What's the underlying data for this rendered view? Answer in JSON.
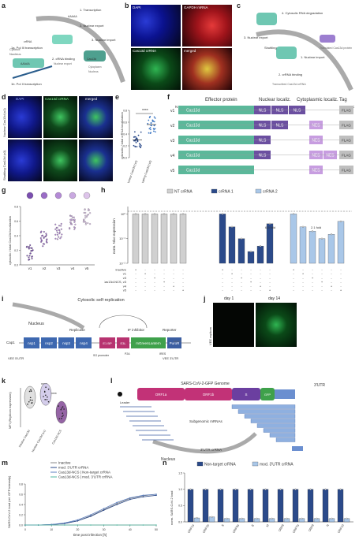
{
  "panels": {
    "a": {
      "letter": "a",
      "labels": [
        "Cytosol",
        "Nucleus",
        "1. Transcription",
        "2. Nuclear export",
        "3. Nuclear import",
        "1a. Pol III transcription",
        "1b. Pol II transcription",
        "2. cRNA binding",
        "Nuclear export",
        "Cytoplasm",
        "Nucleus",
        "AAAAA",
        "AAAAA",
        "crRNA",
        "Cas13d"
      ]
    },
    "b": {
      "letter": "b",
      "tiles": [
        "DAPI",
        "GAPDH mRNA",
        "Cas13d crRNA",
        "merged"
      ]
    },
    "c": {
      "letter": "c",
      "labels": [
        "4. Cytosolic RNA degradation",
        "3. Nuclear export",
        "2. crRNA binding",
        "1. Nuclear import",
        "Shuttling",
        "Transcribed Cas13d crRNA",
        "Translated Cas13d protein"
      ]
    },
    "d": {
      "letter": "d",
      "cols": [
        "DAPI",
        "Cas13d crRNA",
        "merged"
      ],
      "rows": [
        "Nuclear Cas13d (v1)",
        "Shuttling Cas13d (v3)"
      ]
    },
    "e": {
      "letter": "e",
      "ylabel": "cytosolic / total crRNA localization",
      "categories": [
        "Nuclear Cas13d (v1)",
        "Shuttling Cas13d (v3)"
      ],
      "sig": "****",
      "yticks": [
        "0.0",
        "0.2",
        "0.4",
        "0.6",
        "0.8"
      ]
    },
    "f": {
      "letter": "f",
      "headers": [
        "Effector protein",
        "Nuclear localiz.",
        "Cytoplasmic localiz.",
        "Tag"
      ],
      "termN": "N",
      "termC": "C",
      "rows": [
        {
          "name": "v1",
          "protein": "Cas13d",
          "nls": [
            "NLS",
            "NLS",
            "NLS"
          ],
          "nes": [],
          "tag": "FLAG"
        },
        {
          "name": "v2",
          "protein": "Cas13d",
          "nls": [
            "NLS",
            "NLS"
          ],
          "nes": [
            "NES"
          ],
          "tag": "FLAG"
        },
        {
          "name": "v3",
          "protein": "Cas13d",
          "nls": [
            "NLS"
          ],
          "nes": [
            "NES"
          ],
          "tag": "FLAG"
        },
        {
          "name": "v4",
          "protein": "Cas13d",
          "nls": [
            "NLS"
          ],
          "nes": [
            "NES",
            "NES"
          ],
          "tag": "FLAG"
        },
        {
          "name": "v5",
          "protein": "Cas13d",
          "nls": [],
          "nes": [
            "NES"
          ],
          "tag": "FLAG"
        }
      ]
    },
    "g": {
      "letter": "g",
      "ylabel": "cytosolic / total Cas13d localization"
    },
    "h": {
      "letter": "h",
      "legend": [
        "NT crRNA",
        "crRNA 1",
        "crRNA 2"
      ],
      "ylabel": "norm. Nluc expression",
      "fold1": "6.5 fold",
      "fold2": "2.1 fold",
      "rowlabels": [
        "inactive",
        "v1",
        "v3",
        "Cas13d-NCS, v3",
        "v4",
        "v5"
      ]
    },
    "i": {
      "letter": "i",
      "labels": [
        "Nucleus",
        "Cytosolic self-replication",
        "Replicase",
        "IF inhibitor",
        "Reporter",
        "Cap1",
        "nsp1",
        "nsp2",
        "nsp3",
        "nsp4",
        "E1 BP",
        "E3L",
        "mGreenLantern",
        "PuroR",
        "AAAAA",
        "VEE 5'UTR",
        "SG promoter",
        "P2A",
        "IRES",
        "VEE 3'UTR"
      ]
    },
    "j": {
      "letter": "j",
      "days": [
        "day 1",
        "day 14"
      ],
      "side": "VEE replicon"
    },
    "k": {
      "letter": "k",
      "ylabel": "MFI (Replicon expression)",
      "categories": [
        "inactive Cas13d",
        "Nuclear Cas13d (v1)",
        "Cas13d-NCS"
      ],
      "sig": [
        "****",
        "****"
      ]
    },
    "l": {
      "letter": "l",
      "labels": [
        "SARS-CoV-2-GFP Genome",
        "Leader",
        "ORF1a",
        "ORF1b",
        "S",
        "GFP",
        "3'UTR",
        "Subgenomic mRNAs",
        "3'UTR crRNA",
        "Nucleus"
      ]
    },
    "m": {
      "letter": "m",
      "legend": [
        "Inactive",
        "mod. 3'UTR crRNA",
        "Cas13d-NCS | Non-target crRNA",
        "Cas13d-NCS | mod. 3'UTR crRNA"
      ],
      "ylabel": "SARS-CoV-2 load (rel. GFP intensity)",
      "xlabel": "time post infection [h]",
      "xticks": [
        "0",
        "10",
        "20",
        "30",
        "40",
        "50"
      ],
      "yticks": [
        "0.0",
        "0.2",
        "0.4",
        "0.6",
        "0.8"
      ]
    },
    "n": {
      "letter": "n",
      "legend": [
        "Non-target crRNA",
        "mod. 3'UTR crRNA"
      ],
      "ylabel": "norm. SARS-CoV-2 load",
      "yticks": [
        "0.0",
        "0.5",
        "1.0",
        "1.5"
      ]
    }
  },
  "chart_data": [
    {
      "panel": "e",
      "type": "scatter",
      "categories": [
        "Nuclear Cas13d (v1)",
        "Shuttling Cas13d (v3)"
      ],
      "series": [
        {
          "values": [
            0.3,
            0.56
          ]
        }
      ],
      "ylim": [
        0,
        0.8
      ]
    },
    {
      "panel": "g",
      "type": "scatter",
      "categories": [
        "v1",
        "v2",
        "v3",
        "v4",
        "v5"
      ],
      "series": [
        {
          "values": [
            0.17,
            0.35,
            0.46,
            0.58,
            0.66
          ]
        }
      ],
      "ylim": [
        0,
        0.8
      ]
    },
    {
      "panel": "h",
      "type": "bar",
      "log_scale": true,
      "categories": [
        "1",
        "2",
        "3",
        "4",
        "5",
        "6"
      ],
      "series": [
        {
          "name": "NT crRNA",
          "values": [
            1,
            1,
            1,
            1,
            1,
            1
          ]
        },
        {
          "name": "crRNA 1",
          "values": [
            1,
            0.3,
            0.1,
            0.03,
            0.05,
            0.4
          ]
        },
        {
          "name": "crRNA 2",
          "values": [
            1,
            0.3,
            0.2,
            0.1,
            0.15,
            0.5
          ]
        }
      ]
    },
    {
      "panel": "k",
      "type": "scatter",
      "categories": [
        "inactive Cas13d",
        "Nuclear Cas13d (v1)",
        "Cas13d-NCS"
      ],
      "series": [
        {
          "values": [
            100,
            110,
            50
          ]
        }
      ]
    },
    {
      "panel": "m",
      "type": "line",
      "x": [
        0,
        5,
        10,
        15,
        20,
        25,
        30,
        35,
        40,
        45,
        50
      ],
      "series": [
        {
          "name": "Inactive",
          "values": [
            0.0,
            0.0,
            0.01,
            0.03,
            0.08,
            0.18,
            0.3,
            0.42,
            0.52,
            0.57,
            0.6
          ]
        },
        {
          "name": "mod. 3'UTR crRNA",
          "values": [
            0.0,
            0.0,
            0.01,
            0.03,
            0.08,
            0.17,
            0.29,
            0.4,
            0.5,
            0.55,
            0.58
          ]
        },
        {
          "name": "Cas13d-NCS | Non-target crRNA",
          "values": [
            0.0,
            0.0,
            0.01,
            0.04,
            0.1,
            0.2,
            0.32,
            0.44,
            0.53,
            0.58,
            0.6
          ]
        },
        {
          "name": "Cas13d-NCS | mod. 3'UTR crRNA",
          "values": [
            0.0,
            0.0,
            0.0,
            0.0,
            0.0,
            0.0,
            0.0,
            0.0,
            0.0,
            0.0,
            0.0
          ]
        }
      ],
      "ylim": [
        0,
        0.8
      ]
    },
    {
      "panel": "n",
      "type": "bar",
      "categories": [
        "ORF1a",
        "ORF1b",
        "S",
        "ORF3a",
        "E",
        "M",
        "ORF6",
        "ORF7a",
        "ORF8",
        "N",
        "ORF10"
      ],
      "series": [
        {
          "name": "Non-target crRNA",
          "values": [
            1,
            1,
            1,
            1,
            1,
            1,
            1,
            1,
            1,
            1,
            1
          ]
        },
        {
          "name": "mod. 3'UTR crRNA",
          "values": [
            0.12,
            0.15,
            0.1,
            0.1,
            0.1,
            0.1,
            0.1,
            0.1,
            0.1,
            0.1,
            0.1
          ]
        }
      ],
      "ylim": [
        0,
        1.5
      ]
    }
  ]
}
